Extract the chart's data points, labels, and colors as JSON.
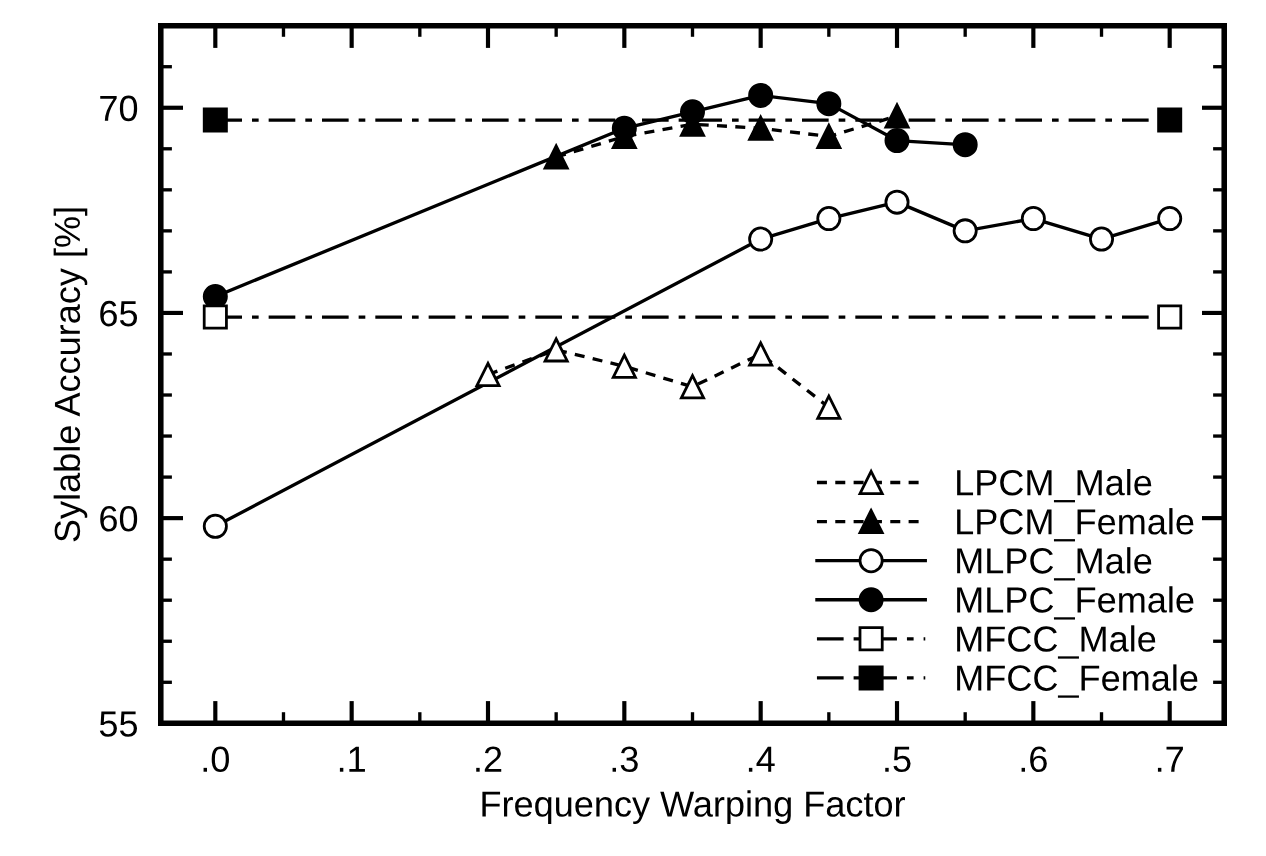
{
  "chart_data": {
    "type": "line",
    "xlabel": "Frequency Warping Factor",
    "ylabel": "Sylable Accuracy [%]",
    "xlim": [
      -0.04,
      0.74
    ],
    "xticks": [
      {
        "value": 0,
        "label": ".0"
      },
      {
        "value": 0.1,
        "label": ".1"
      },
      {
        "value": 0.2,
        "label": ".2"
      },
      {
        "value": 0.3,
        "label": ".3"
      },
      {
        "value": 0.4,
        "label": ".4"
      },
      {
        "value": 0.5,
        "label": ".5"
      },
      {
        "value": 0.6,
        "label": ".6"
      },
      {
        "value": 0.7,
        "label": ".7"
      }
    ],
    "ylim": [
      55,
      72
    ],
    "yticks": [
      55,
      60,
      65,
      70
    ],
    "grid": false,
    "legend": "bottom right",
    "series": [
      {
        "name": "LPCM_Male",
        "color": "#ffffff",
        "marker": "triangle",
        "line_style": "dotted",
        "x": [
          0.2,
          0.25,
          0.3,
          0.35,
          0.4,
          0.45
        ],
        "values": [
          63.5,
          64.1,
          63.7,
          63.2,
          64.0,
          62.7
        ]
      },
      {
        "name": "LPCM_Female",
        "color": "#000000",
        "marker": "triangle",
        "line_style": "dotted",
        "x": [
          0.25,
          0.3,
          0.35,
          0.4,
          0.45,
          0.5
        ],
        "values": [
          68.8,
          69.3,
          69.6,
          69.5,
          69.3,
          69.8
        ]
      },
      {
        "name": "MLPC_Male",
        "color": "#ffffff",
        "marker": "circle",
        "line_style": "solid",
        "x": [
          0,
          0.4,
          0.45,
          0.5,
          0.55,
          0.6,
          0.65,
          0.7
        ],
        "values": [
          59.8,
          66.8,
          67.3,
          67.7,
          67.0,
          67.3,
          66.8,
          67.3
        ]
      },
      {
        "name": "MLPC_Female",
        "color": "#000000",
        "marker": "circle",
        "line_style": "solid",
        "x": [
          0,
          0.3,
          0.35,
          0.4,
          0.45,
          0.5,
          0.55
        ],
        "values": [
          65.4,
          69.5,
          69.9,
          70.3,
          70.1,
          69.2,
          69.1
        ]
      },
      {
        "name": "MFCC_Male",
        "color": "#ffffff",
        "marker": "square",
        "line_style": "dashdot",
        "x": [
          0,
          0.7
        ],
        "values": [
          64.9,
          64.9
        ]
      },
      {
        "name": "MFCC_Female",
        "color": "#000000",
        "marker": "square",
        "line_style": "dashdot",
        "x": [
          0,
          0.7
        ],
        "values": [
          69.7,
          69.7
        ]
      }
    ]
  }
}
